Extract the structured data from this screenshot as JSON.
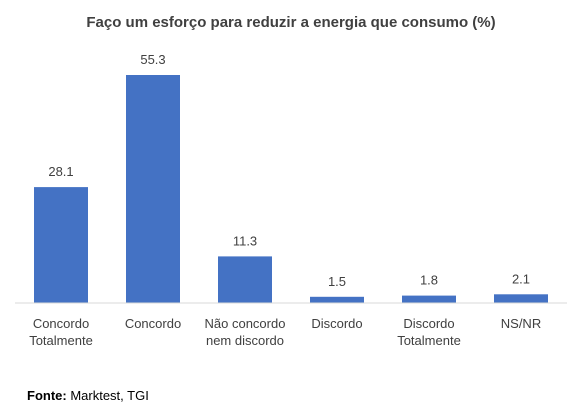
{
  "chart_data": {
    "type": "bar",
    "title": "Faço um esforço para reduzir a energia que consumo (%)",
    "categories": [
      [
        "Concordo",
        "Totalmente"
      ],
      [
        "Concordo"
      ],
      [
        "Não concordo",
        "nem discordo"
      ],
      [
        "Discordo"
      ],
      [
        "Discordo",
        "Totalmente"
      ],
      [
        "NS/NR"
      ]
    ],
    "values": [
      28.1,
      55.3,
      11.3,
      1.5,
      1.8,
      2.1
    ],
    "value_labels": [
      "28.1",
      "55.3",
      "11.3",
      "1.5",
      "1.8",
      "2.1"
    ],
    "ylim": [
      0,
      55.3
    ],
    "grid": false,
    "bar_color": "#4472C4"
  },
  "source": {
    "label": "Fonte:",
    "text": " Marktest, TGI"
  }
}
